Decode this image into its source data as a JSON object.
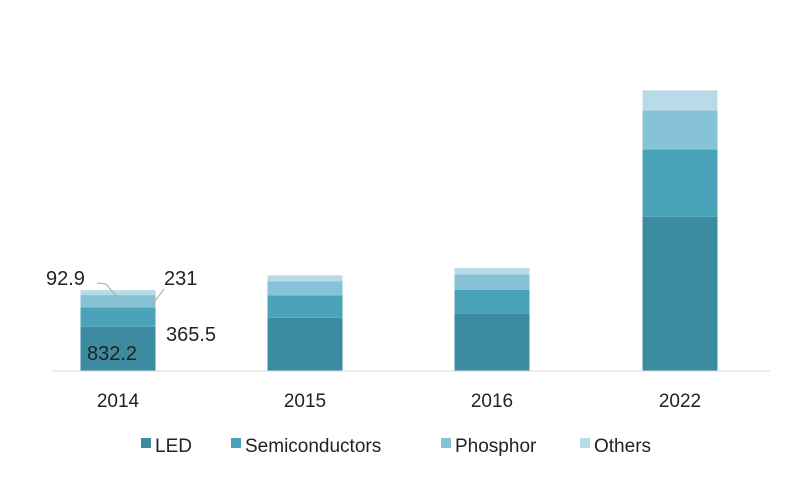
{
  "chart_data": {
    "type": "bar",
    "stacked": true,
    "title": "",
    "xlabel": "",
    "ylabel": "",
    "categories": [
      "2014",
      "2015",
      "2016",
      "2022"
    ],
    "series": [
      {
        "name": "LED",
        "color": "#3c8ba0",
        "values": [
          832.2,
          1000,
          1080,
          2900
        ]
      },
      {
        "name": "Semiconductors",
        "color": "#4ba3b9",
        "values": [
          365.5,
          420,
          450,
          1270
        ]
      },
      {
        "name": "Phosphor",
        "color": "#86c3d6",
        "values": [
          231,
          270,
          290,
          730
        ]
      },
      {
        "name": "Others",
        "color": "#b8dbe8",
        "values": [
          92.9,
          110,
          120,
          380
        ]
      }
    ],
    "data_labels": [
      {
        "text": "832.2",
        "series": "LED",
        "category": "2014"
      },
      {
        "text": "365.5",
        "series": "Semiconductors",
        "category": "2014"
      },
      {
        "text": "231",
        "series": "Phosphor",
        "category": "2014"
      },
      {
        "text": "92.9",
        "series": "Others",
        "category": "2014"
      }
    ],
    "ylim": [
      0,
      5400
    ],
    "grid": false,
    "y_axis_visible": false,
    "legend_position": "bottom"
  }
}
